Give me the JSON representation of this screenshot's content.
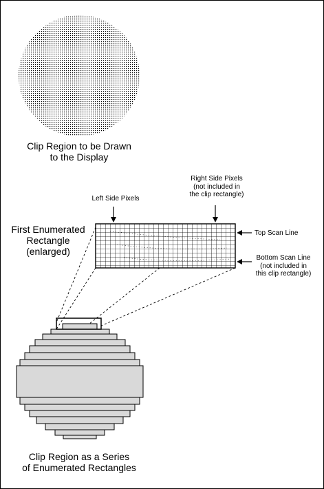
{
  "top_circle_caption": [
    "Clip Region to be Drawn",
    "to the Display"
  ],
  "left_side_pixels": "Left Side Pixels",
  "right_side_pixels": [
    "Right Side Pixels",
    "(not included in",
    "the clip rectangle)"
  ],
  "first_rect": [
    "First Enumerated",
    "Rectangle",
    "(enlarged)"
  ],
  "top_scan_line": "Top Scan Line",
  "bottom_scan_line": [
    "Bottom Scan Line",
    "(not included in",
    "this clip rectangle)"
  ],
  "bottom_caption": [
    "Clip Region as a Series",
    "of Enumerated Rectangles"
  ]
}
